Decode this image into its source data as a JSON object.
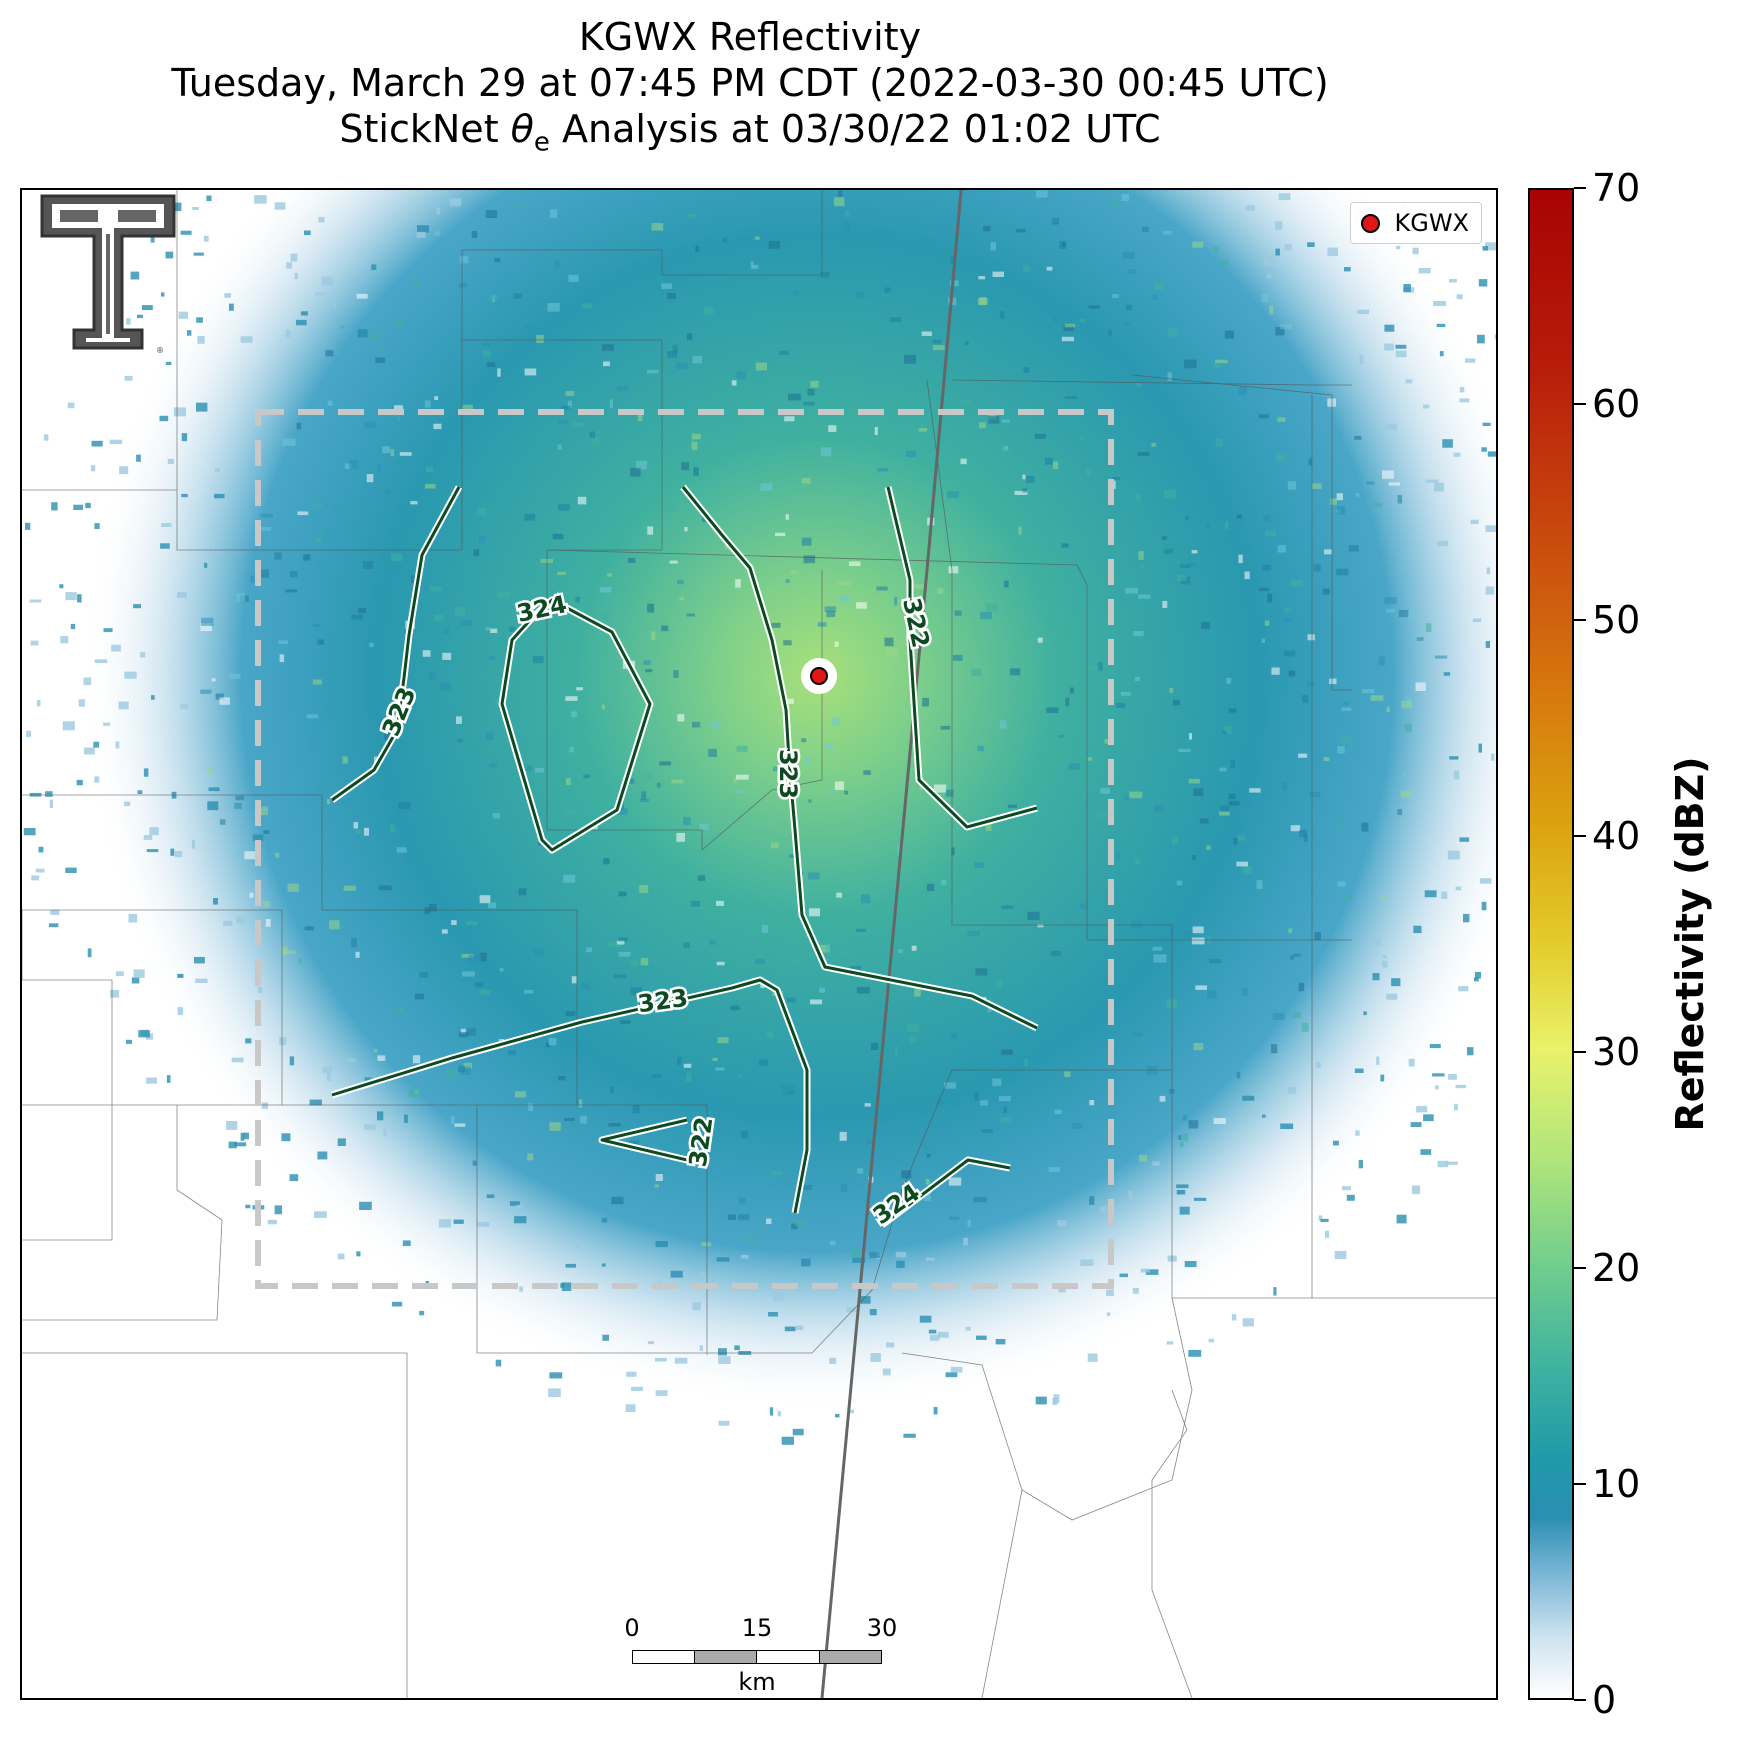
{
  "title": {
    "line1": "KGWX Reflectivity",
    "line2": "Tuesday, March 29 at 07:45 PM CDT (2022-03-30 00:45 UTC)",
    "line3_prefix": "StickNet ",
    "line3_symbol": "θ",
    "line3_subscript": "e",
    "line3_suffix": " Analysis at 03/30/22 01:02 UTC"
  },
  "legend": {
    "label": "KGWX",
    "marker_color": "#e11616"
  },
  "colorbar": {
    "title": "Reflectivity (dBZ)",
    "min": 0,
    "max": 70,
    "ticks": [
      "0",
      "10",
      "20",
      "30",
      "40",
      "50",
      "60",
      "70"
    ]
  },
  "scalebar": {
    "ticks": [
      "0",
      "15",
      "30"
    ],
    "unit": "km"
  },
  "contours": [
    {
      "level": "324",
      "label": "324"
    },
    {
      "level": "323",
      "label": "323"
    },
    {
      "level": "322",
      "label": "322"
    }
  ],
  "colors": {
    "contour": "#0d4a22",
    "analysis_box": "#c8c8c8",
    "reflectivity_low": "#2a8fb2",
    "reflectivity_mid": "#6ccb8f"
  },
  "icons": {
    "logo": "texas-tech-double-t-logo",
    "radar_site": "red-dot-marker"
  }
}
